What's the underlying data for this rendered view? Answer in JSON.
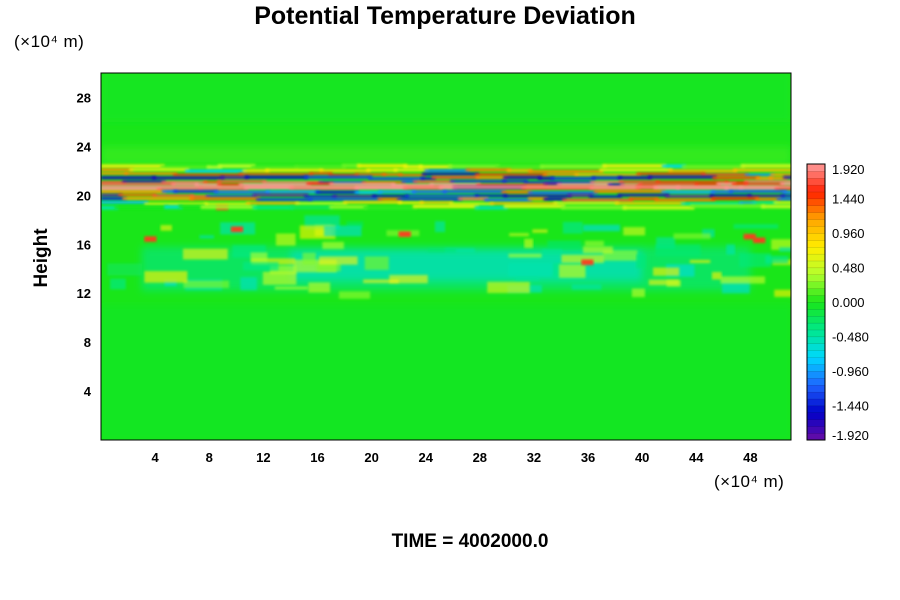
{
  "chart_data": {
    "type": "heatmap",
    "title": "Potential Temperature Deviation",
    "ylabel": "Height",
    "xlabel": "",
    "x_unit_label": "(×10⁴ m)",
    "y_unit_label": "(×10⁴ m)",
    "footer": "TIME = 4002000.0",
    "x_ticks": [
      "4",
      "8",
      "12",
      "16",
      "20",
      "24",
      "28",
      "32",
      "36",
      "40",
      "44",
      "48"
    ],
    "y_ticks": [
      "4",
      "8",
      "12",
      "16",
      "20",
      "24",
      "28"
    ],
    "xlim": [
      0,
      51
    ],
    "ylim": [
      0,
      30
    ],
    "colorbar": {
      "labels": [
        "1.920",
        "1.440",
        "0.960",
        "0.480",
        "0.000",
        "-0.480",
        "-0.960",
        "-1.440",
        "-1.920"
      ],
      "range": [
        -1.92,
        1.92
      ],
      "levels": 40,
      "colors_low_to_high": [
        "#6a0da6",
        "#0000c8",
        "#1e64ff",
        "#00d8ff",
        "#00e88a",
        "#19e619",
        "#b4ff2e",
        "#ffee00",
        "#ffa500",
        "#ff2000",
        "#ff9c9c"
      ]
    },
    "background_value_color": "#19e619",
    "bands": [
      {
        "y": 20.3,
        "height": 1.2,
        "description": "strong alternating positive/negative layer"
      },
      {
        "y": 21.6,
        "height": 0.6,
        "description": "positive layer (yellow/red)"
      },
      {
        "y": 19.2,
        "height": 0.6,
        "description": "mixed layer"
      },
      {
        "y": 16.0,
        "height": 1.5,
        "description": "weak positive perturbations"
      },
      {
        "y": 13.5,
        "height": 2.5,
        "description": "weak negative region (cyan)"
      },
      {
        "y": 11.8,
        "height": 1.0,
        "description": "weak positive layer"
      }
    ]
  }
}
